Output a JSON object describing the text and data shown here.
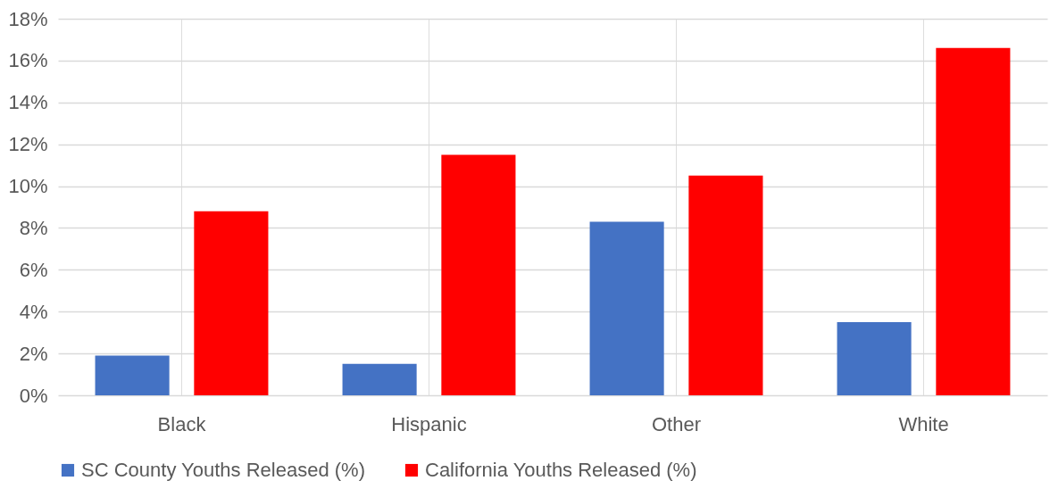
{
  "chart_data": {
    "type": "bar",
    "categories": [
      "Black",
      "Hispanic",
      "Other",
      "White"
    ],
    "series": [
      {
        "name": "SC County Youths Released (%)",
        "color": "#4472c4",
        "values": [
          1.9,
          1.5,
          8.3,
          3.5
        ]
      },
      {
        "name": "California Youths Released (%)",
        "color": "#ff0000",
        "values": [
          8.8,
          11.5,
          10.5,
          16.6
        ]
      }
    ],
    "ylim": [
      0,
      18
    ],
    "yticks": [
      {
        "value": 0,
        "label": "0%"
      },
      {
        "value": 2,
        "label": "2%"
      },
      {
        "value": 4,
        "label": "4%"
      },
      {
        "value": 6,
        "label": "6%"
      },
      {
        "value": 8,
        "label": "8%"
      },
      {
        "value": 10,
        "label": "10%"
      },
      {
        "value": 12,
        "label": "12%"
      },
      {
        "value": 14,
        "label": "14%"
      },
      {
        "value": 16,
        "label": "16%"
      },
      {
        "value": 18,
        "label": "18%"
      }
    ],
    "grid": true,
    "legend": "bottom"
  }
}
